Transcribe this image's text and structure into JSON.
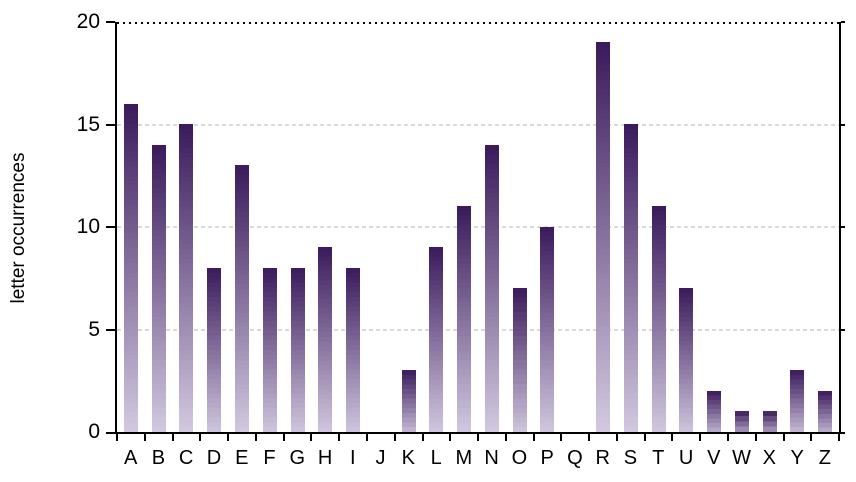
{
  "chart_data": {
    "type": "bar",
    "title": "",
    "xlabel": "",
    "ylabel": "letter occurrences",
    "categories": [
      "A",
      "B",
      "C",
      "D",
      "E",
      "F",
      "G",
      "H",
      "I",
      "J",
      "K",
      "L",
      "M",
      "N",
      "O",
      "P",
      "Q",
      "R",
      "S",
      "T",
      "U",
      "V",
      "W",
      "X",
      "Y",
      "Z"
    ],
    "values": [
      16,
      14,
      15,
      8,
      13,
      8,
      8,
      9,
      8,
      0,
      3,
      9,
      11,
      14,
      7,
      10,
      0,
      19,
      15,
      11,
      7,
      2,
      1,
      1,
      3,
      2
    ],
    "ylim": [
      0,
      20
    ],
    "yticks": [
      0,
      5,
      10,
      15,
      20
    ],
    "grid": {
      "dashed_levels": [
        5,
        10,
        15
      ],
      "dotted_levels": [
        20
      ],
      "dashed_color": "#dadada",
      "dotted_color": "#000000"
    },
    "legend": "none",
    "colors": {
      "bar_top": "#3A1A5B",
      "bar_bottom": "#D6CEE4",
      "axis": "#000000",
      "text": "#000000",
      "background": "#ffffff"
    }
  }
}
